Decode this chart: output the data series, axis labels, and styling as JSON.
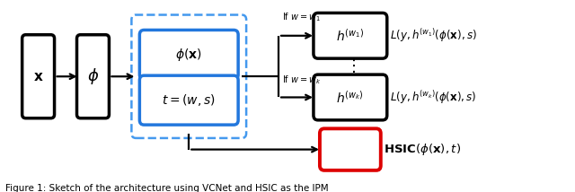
{
  "fig_width": 6.4,
  "fig_height": 2.14,
  "dpi": 100,
  "bg_color": "#ffffff",
  "caption": "Figure 1: Sketch of the architecture using VCNet and HSIC as the IPM"
}
